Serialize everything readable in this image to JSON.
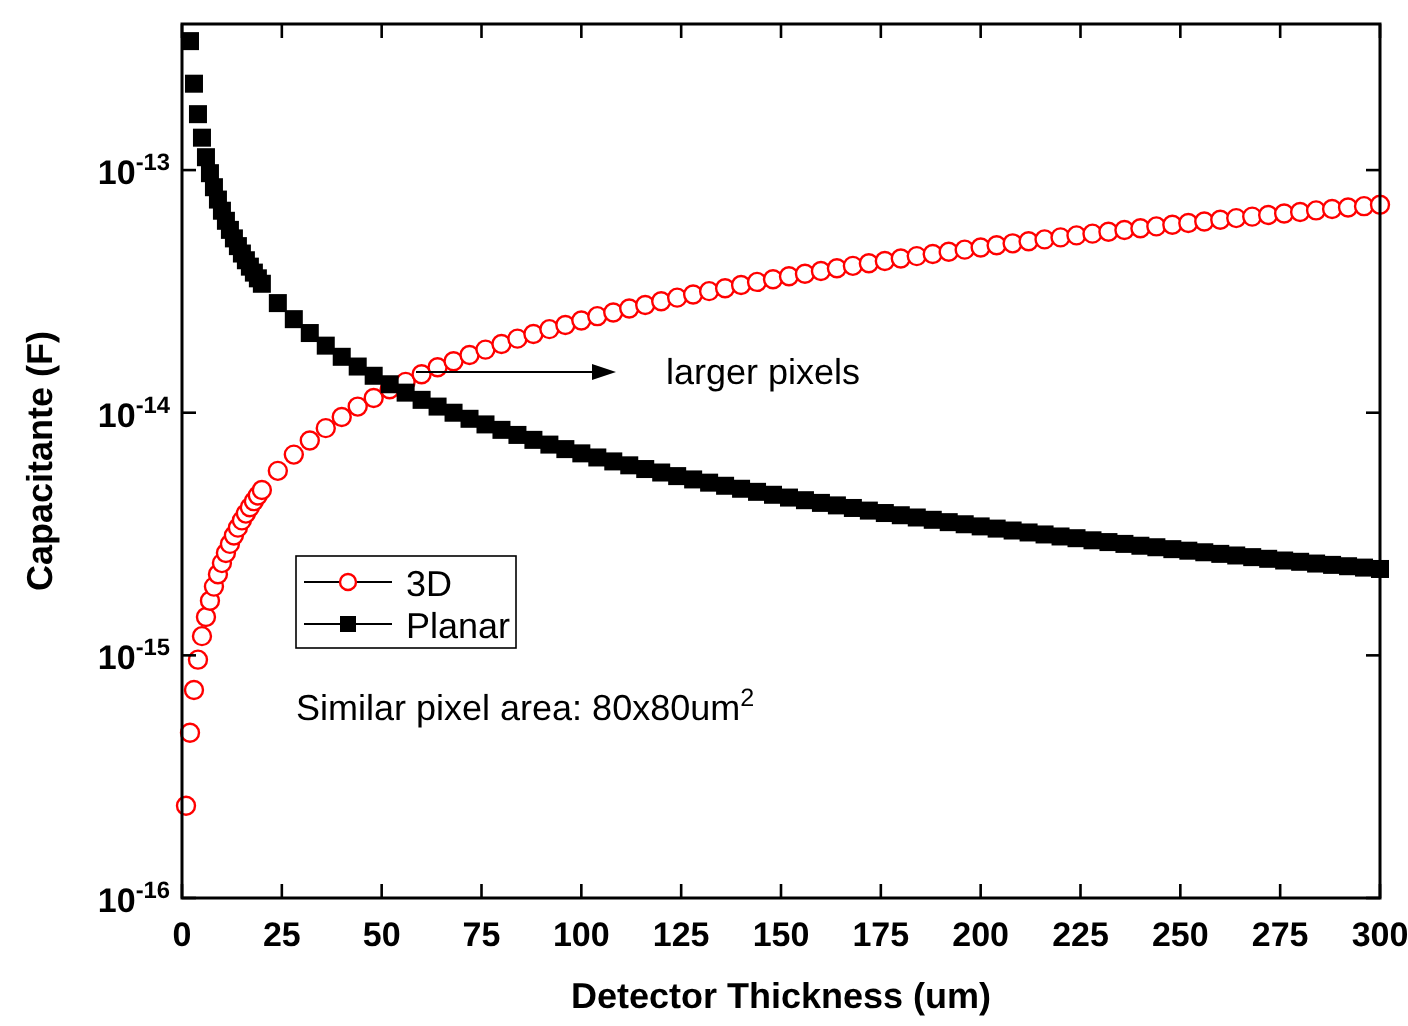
{
  "chart_data": {
    "type": "scatter",
    "xlabel": "Detector Thickness (um)",
    "ylabel": "Capacitante (F)",
    "xlim": [
      0,
      300
    ],
    "xticks": [
      0,
      25,
      50,
      75,
      100,
      125,
      150,
      175,
      200,
      225,
      250,
      275,
      300
    ],
    "ylim": [
      1e-16,
      4e-13
    ],
    "log": "y",
    "yticks": [
      {
        "value": 1e-16,
        "label": "10$^{-16}$"
      },
      {
        "value": 1e-15,
        "label": "10$^{-15}$"
      },
      {
        "value": 1e-14,
        "label": "10$^{-14}$"
      },
      {
        "value": 1e-13,
        "label": "10$^{-13}$"
      }
    ],
    "grid": false,
    "legend": "left",
    "annotations": [
      "larger pixels",
      "Similar pixel area: 80x80um$^{2}$"
    ],
    "series": [
      {
        "name": "3D",
        "color": "#ff0000",
        "marker": "circle",
        "x": [
          1,
          2,
          3,
          4,
          5,
          6,
          7,
          8,
          9,
          10,
          11,
          12,
          13,
          14,
          15,
          16,
          17,
          18,
          19,
          20,
          24,
          28,
          32,
          36,
          40,
          44,
          48,
          52,
          56,
          60,
          64,
          68,
          72,
          76,
          80,
          84,
          88,
          92,
          96,
          100,
          104,
          108,
          112,
          116,
          120,
          124,
          128,
          132,
          136,
          140,
          144,
          148,
          152,
          156,
          160,
          164,
          168,
          172,
          176,
          180,
          184,
          188,
          192,
          196,
          200,
          204,
          208,
          212,
          216,
          220,
          224,
          228,
          232,
          236,
          240,
          244,
          248,
          252,
          256,
          260,
          264,
          268,
          272,
          276,
          280,
          284,
          288,
          292,
          296,
          300
        ],
        "values": [
          2.4e-16,
          4.8e-16,
          7.2e-16,
          9.6e-16,
          1.2e-15,
          1.44e-15,
          1.68e-15,
          1.92e-15,
          2.16e-15,
          2.4e-15,
          2.64e-15,
          2.88e-15,
          3.12e-15,
          3.36e-15,
          3.6e-15,
          3.84e-15,
          4.08e-15,
          4.32e-15,
          4.56e-15,
          4.8e-15,
          5.76e-15,
          6.72e-15,
          7.68e-15,
          8.64e-15,
          9.6e-15,
          1.06e-14,
          1.15e-14,
          1.25e-14,
          1.34e-14,
          1.44e-14,
          1.54e-14,
          1.63e-14,
          1.73e-14,
          1.82e-14,
          1.92e-14,
          2.02e-14,
          2.11e-14,
          2.21e-14,
          2.3e-14,
          2.4e-14,
          2.5e-14,
          2.59e-14,
          2.69e-14,
          2.78e-14,
          2.88e-14,
          2.98e-14,
          3.07e-14,
          3.17e-14,
          3.26e-14,
          3.36e-14,
          3.46e-14,
          3.55e-14,
          3.65e-14,
          3.74e-14,
          3.84e-14,
          3.94e-14,
          4.03e-14,
          4.13e-14,
          4.22e-14,
          4.32e-14,
          4.42e-14,
          4.51e-14,
          4.61e-14,
          4.7e-14,
          4.8e-14,
          4.9e-14,
          4.99e-14,
          5.09e-14,
          5.18e-14,
          5.28e-14,
          5.38e-14,
          5.47e-14,
          5.57e-14,
          5.66e-14,
          5.76e-14,
          5.86e-14,
          5.95e-14,
          6.05e-14,
          6.14e-14,
          6.24e-14,
          6.34e-14,
          6.43e-14,
          6.53e-14,
          6.62e-14,
          6.72e-14,
          6.82e-14,
          6.91e-14,
          7.01e-14,
          7.1e-14,
          7.2e-14
        ]
      },
      {
        "name": "Planar",
        "color": "#000000",
        "marker": "square",
        "x": [
          2,
          3,
          4,
          5,
          6,
          7,
          8,
          9,
          10,
          11,
          12,
          13,
          14,
          15,
          16,
          17,
          18,
          19,
          20,
          24,
          28,
          32,
          36,
          40,
          44,
          48,
          52,
          56,
          60,
          64,
          68,
          72,
          76,
          80,
          84,
          88,
          92,
          96,
          100,
          104,
          108,
          112,
          116,
          120,
          124,
          128,
          132,
          136,
          140,
          144,
          148,
          152,
          156,
          160,
          164,
          168,
          172,
          176,
          180,
          184,
          188,
          192,
          196,
          200,
          204,
          208,
          212,
          216,
          220,
          224,
          228,
          232,
          236,
          240,
          244,
          248,
          252,
          256,
          260,
          264,
          268,
          272,
          276,
          280,
          284,
          288,
          292,
          296,
          300
        ],
        "values": [
          3.4e-13,
          2.27e-13,
          1.7e-13,
          1.36e-13,
          1.13e-13,
          9.71e-14,
          8.5e-14,
          7.56e-14,
          6.8e-14,
          6.18e-14,
          5.67e-14,
          5.23e-14,
          4.86e-14,
          4.53e-14,
          4.25e-14,
          4e-14,
          3.78e-14,
          3.58e-14,
          3.4e-14,
          2.83e-14,
          2.43e-14,
          2.13e-14,
          1.89e-14,
          1.7e-14,
          1.55e-14,
          1.42e-14,
          1.31e-14,
          1.21e-14,
          1.13e-14,
          1.06e-14,
          1e-14,
          9.44e-15,
          8.95e-15,
          8.5e-15,
          8.1e-15,
          7.73e-15,
          7.39e-15,
          7.08e-15,
          6.8e-15,
          6.54e-15,
          6.3e-15,
          6.07e-15,
          5.86e-15,
          5.67e-15,
          5.48e-15,
          5.31e-15,
          5.15e-15,
          5e-15,
          4.86e-15,
          4.72e-15,
          4.59e-15,
          4.47e-15,
          4.36e-15,
          4.25e-15,
          4.15e-15,
          4.05e-15,
          3.95e-15,
          3.86e-15,
          3.78e-15,
          3.7e-15,
          3.62e-15,
          3.54e-15,
          3.47e-15,
          3.4e-15,
          3.33e-15,
          3.27e-15,
          3.21e-15,
          3.15e-15,
          3.09e-15,
          3.04e-15,
          2.98e-15,
          2.93e-15,
          2.88e-15,
          2.83e-15,
          2.79e-15,
          2.74e-15,
          2.7e-15,
          2.66e-15,
          2.62e-15,
          2.58e-15,
          2.54e-15,
          2.5e-15,
          2.46e-15,
          2.43e-15,
          2.39e-15,
          2.36e-15,
          2.33e-15,
          2.3e-15,
          2.27e-15
        ]
      }
    ]
  }
}
